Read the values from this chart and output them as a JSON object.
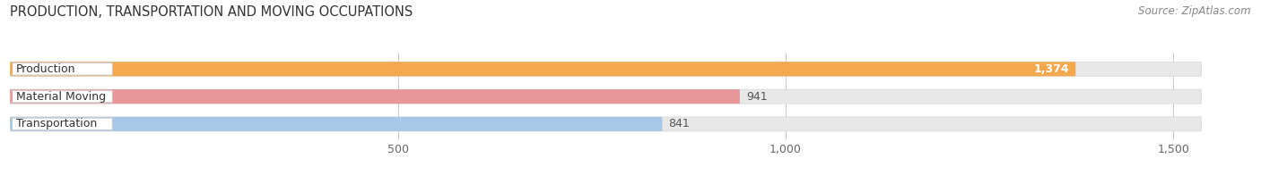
{
  "title": "PRODUCTION, TRANSPORTATION AND MOVING OCCUPATIONS",
  "source_text": "Source: ZipAtlas.com",
  "categories": [
    "Production",
    "Material Moving",
    "Transportation"
  ],
  "values": [
    1374,
    941,
    841
  ],
  "bar_colors": [
    "#F5A94E",
    "#E8969A",
    "#A8C8E8"
  ],
  "value_labels": [
    "1,374",
    "941",
    "841"
  ],
  "value_inside": [
    true,
    false,
    false
  ],
  "xlim_max": 1600,
  "xticks": [
    500,
    1000,
    1500
  ],
  "background_color": "#ffffff",
  "bar_bg_color": "#e8e8e8",
  "bar_bg_edge_color": "#d8d8d8",
  "title_fontsize": 10.5,
  "source_fontsize": 8.5,
  "tick_fontsize": 9,
  "label_fontsize": 9,
  "category_fontsize": 9,
  "figsize": [
    14.06,
    1.96
  ],
  "dpi": 100
}
